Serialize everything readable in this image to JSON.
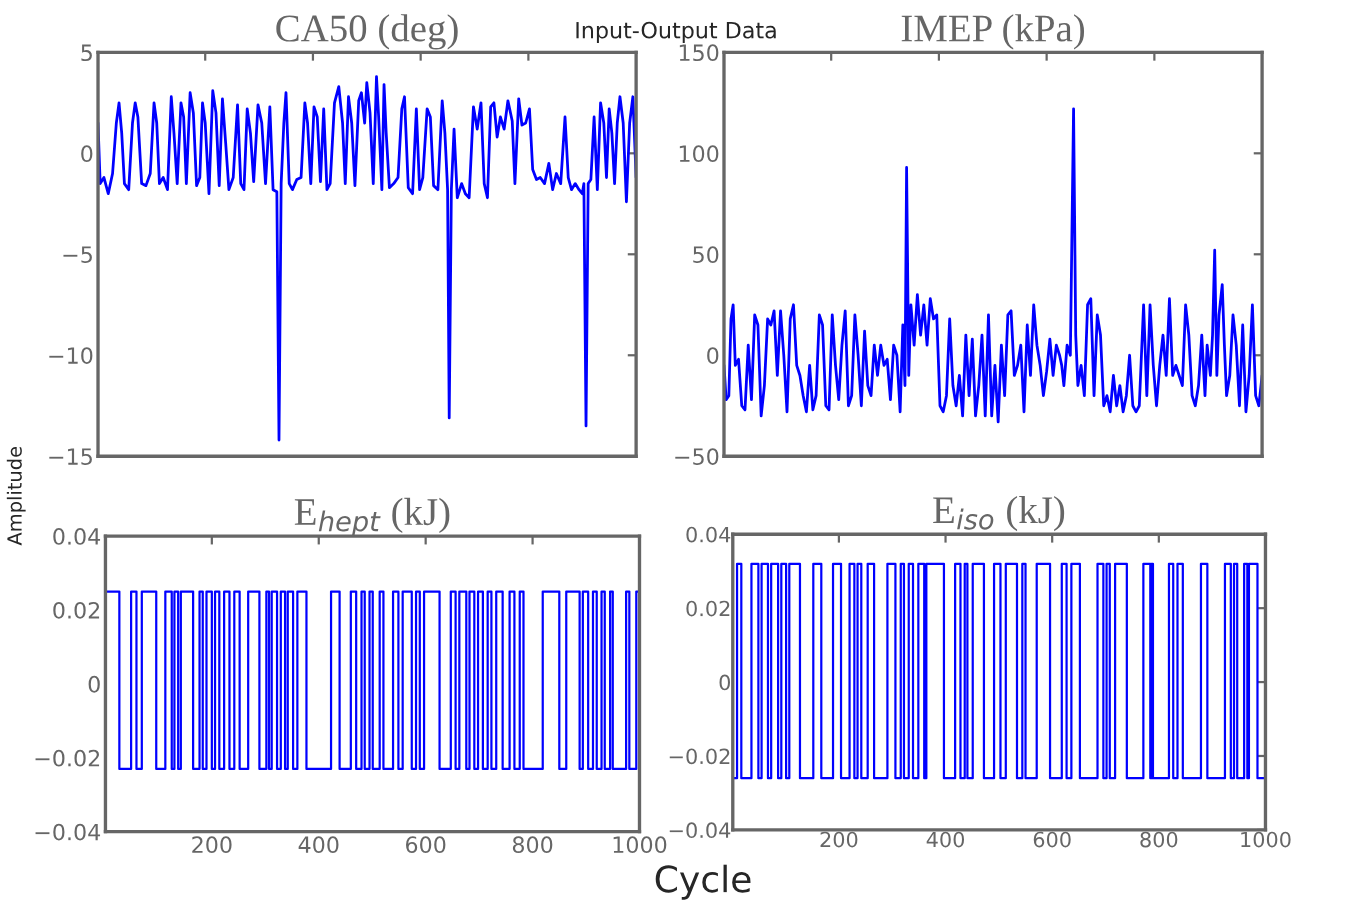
{
  "chart_data": [
    {
      "type": "line",
      "title": "CA50 (deg)",
      "ylabel": "Amplitude",
      "annotations": [
        "Input-Output Data"
      ],
      "xlim": [
        1,
        1000
      ],
      "xticks": [
        {
          "value": 200,
          "label": null
        },
        {
          "value": 400,
          "label": null
        },
        {
          "value": 600,
          "label": null
        },
        {
          "value": 800,
          "label": null
        }
      ],
      "ylim": [
        -15,
        5
      ],
      "yticks": [
        -15,
        -10,
        -5,
        0,
        5
      ],
      "tick_labels": "y",
      "grid": false,
      "series": [
        {
          "color": "#0000ff",
          "x": [
            1,
            5,
            12,
            20,
            28,
            35,
            40,
            45,
            50,
            58,
            65,
            70,
            75,
            82,
            90,
            98,
            105,
            110,
            115,
            122,
            130,
            137,
            142,
            148,
            155,
            160,
            165,
            172,
            178,
            184,
            190,
            195,
            200,
            207,
            214,
            220,
            226,
            232,
            238,
            244,
            252,
            260,
            266,
            272,
            278,
            284,
            290,
            298,
            305,
            312,
            320,
            326,
            333,
            337,
            341,
            346,
            350,
            356,
            362,
            370,
            378,
            385,
            390,
            396,
            402,
            408,
            414,
            420,
            426,
            432,
            440,
            448,
            455,
            460,
            466,
            472,
            478,
            485,
            490,
            496,
            500,
            506,
            512,
            518,
            522,
            528,
            532,
            536,
            542,
            550,
            558,
            565,
            570,
            577,
            585,
            592,
            598,
            604,
            612,
            618,
            624,
            632,
            640,
            645,
            650,
            653,
            657,
            662,
            668,
            676,
            683,
            690,
            698,
            705,
            712,
            718,
            724,
            730,
            736,
            742,
            748,
            755,
            762,
            770,
            775,
            782,
            788,
            795,
            802,
            808,
            815,
            822,
            830,
            838,
            845,
            852,
            860,
            868,
            874,
            880,
            887,
            894,
            900,
            903,
            907,
            911,
            916,
            922,
            928,
            934,
            940,
            945,
            950,
            955,
            960,
            965,
            970,
            976,
            982,
            988,
            994,
            1000
          ],
          "values": [
            1.5,
            -1.5,
            -1.2,
            -2,
            -1,
            1.5,
            2.5,
            1,
            -1.5,
            -1.8,
            1.5,
            2.5,
            1.8,
            -1.5,
            -1.6,
            -1,
            2.5,
            1.5,
            -1.5,
            -1.2,
            -1.8,
            2.8,
            1,
            -1.5,
            2.5,
            1.8,
            -1.5,
            3,
            2,
            -1.6,
            -1.2,
            2.5,
            1.5,
            -2,
            3.1,
            2,
            -1.6,
            2.7,
            0.5,
            -1.8,
            -1.2,
            2.4,
            -1.5,
            -1.8,
            2.2,
            1,
            -1.4,
            2.4,
            1.5,
            -1.5,
            2.3,
            -1.8,
            -1.9,
            -14.2,
            -1.5,
            1.5,
            3,
            -1.5,
            -1.8,
            -1.3,
            -1.2,
            2.5,
            1.5,
            -1.5,
            2.3,
            1.8,
            -1.4,
            2.2,
            -1.8,
            -1.5,
            2.5,
            3.3,
            1.5,
            -1.5,
            2.8,
            1.5,
            -1.6,
            2.6,
            3,
            1.5,
            3.5,
            2,
            -1.5,
            3.8,
            1.8,
            -1.8,
            3.4,
            1,
            -1.7,
            -1.5,
            -1.2,
            2.2,
            2.8,
            -1.7,
            -2,
            2.2,
            -1.8,
            -1.2,
            2.2,
            1.8,
            -1.6,
            -1.8,
            2.6,
            1,
            -1.8,
            -13.1,
            -1.8,
            1.2,
            -2.2,
            -1.5,
            -2,
            -2.2,
            2.3,
            1.2,
            2.5,
            -1.5,
            -2.2,
            2.3,
            2.5,
            0.8,
            1.8,
            1.2,
            2.6,
            1.6,
            -1.5,
            2.7,
            1.4,
            1.5,
            2.2,
            -0.8,
            -1.3,
            -1.2,
            -1.5,
            -0.5,
            -1.8,
            -1,
            -1.5,
            1.8,
            -1.2,
            -1.8,
            -1.5,
            -1.8,
            -2,
            -1.5,
            -13.5,
            -1.5,
            -1.3,
            1.8,
            -1.8,
            2.5,
            1.5,
            -1.2,
            2.2,
            1,
            -1.5,
            1.5,
            2.8,
            1.5,
            -2.4,
            1.5,
            2.8,
            -1.2
          ]
        }
      ]
    },
    {
      "type": "line",
      "title": "IMEP (kPa)",
      "xlim": [
        1,
        1000
      ],
      "xticks": [
        {
          "value": 200,
          "label": null
        },
        {
          "value": 400,
          "label": null
        },
        {
          "value": 600,
          "label": null
        },
        {
          "value": 800,
          "label": null
        }
      ],
      "ylim": [
        -50,
        150
      ],
      "yticks": [
        -50,
        0,
        50,
        100,
        150
      ],
      "tick_labels": "y",
      "grid": false,
      "series": [
        {
          "color": "#0000ff",
          "x": [
            1,
            5,
            10,
            14,
            18,
            22,
            28,
            34,
            40,
            46,
            52,
            58,
            64,
            70,
            76,
            82,
            88,
            94,
            100,
            106,
            112,
            118,
            124,
            130,
            136,
            142,
            148,
            154,
            160,
            166,
            172,
            178,
            184,
            190,
            196,
            202,
            208,
            214,
            220,
            226,
            232,
            238,
            244,
            250,
            256,
            262,
            268,
            274,
            280,
            286,
            292,
            298,
            304,
            310,
            316,
            322,
            328,
            333,
            337,
            340,
            344,
            348,
            354,
            360,
            366,
            372,
            378,
            384,
            390,
            396,
            402,
            408,
            414,
            420,
            426,
            432,
            438,
            444,
            450,
            456,
            462,
            468,
            474,
            480,
            486,
            492,
            498,
            504,
            510,
            516,
            522,
            528,
            534,
            540,
            546,
            552,
            558,
            564,
            570,
            576,
            582,
            588,
            594,
            600,
            606,
            612,
            618,
            624,
            628,
            632,
            638,
            644,
            650,
            654,
            658,
            664,
            670,
            676,
            682,
            688,
            694,
            700,
            706,
            712,
            718,
            724,
            730,
            736,
            742,
            748,
            754,
            760,
            766,
            772,
            780,
            786,
            792,
            798,
            804,
            810,
            816,
            822,
            828,
            834,
            840,
            846,
            852,
            858,
            864,
            870,
            876,
            882,
            888,
            894,
            898,
            904,
            908,
            912,
            916,
            920,
            926,
            930,
            934,
            940,
            946,
            952,
            958,
            964,
            970,
            976,
            982,
            988,
            994,
            1000
          ],
          "values": [
            -5,
            -22,
            -20,
            18,
            25,
            -5,
            -2,
            -25,
            -27,
            5,
            -22,
            20,
            15,
            -30,
            -15,
            18,
            15,
            22,
            -10,
            22,
            0,
            -28,
            18,
            25,
            -5,
            -10,
            -20,
            -28,
            -5,
            -27,
            -20,
            20,
            15,
            -25,
            -27,
            20,
            -5,
            -22,
            5,
            22,
            -25,
            -20,
            20,
            0,
            -25,
            12,
            -15,
            -20,
            5,
            -10,
            5,
            -5,
            -2,
            -22,
            5,
            0,
            -28,
            15,
            -15,
            93,
            -10,
            25,
            5,
            30,
            10,
            25,
            5,
            28,
            18,
            20,
            -25,
            -28,
            -20,
            18,
            -15,
            -25,
            -10,
            -30,
            10,
            -20,
            8,
            -30,
            -15,
            10,
            -30,
            20,
            -30,
            -5,
            -33,
            5,
            -20,
            20,
            22,
            -10,
            -5,
            5,
            -28,
            15,
            -10,
            25,
            5,
            -5,
            -20,
            -8,
            8,
            -10,
            5,
            0,
            -5,
            -15,
            5,
            0,
            122,
            10,
            -15,
            -5,
            -20,
            25,
            28,
            -20,
            20,
            10,
            -25,
            -20,
            -28,
            -10,
            -25,
            -15,
            -28,
            -20,
            0,
            -25,
            -28,
            -25,
            25,
            -20,
            25,
            -5,
            -25,
            -5,
            10,
            -10,
            28,
            -10,
            -5,
            -10,
            -15,
            25,
            10,
            -20,
            -25,
            -15,
            10,
            -20,
            5,
            -10,
            10,
            52,
            -10,
            20,
            35,
            5,
            -20,
            -10,
            20,
            5,
            -25,
            15,
            -28,
            -10,
            25,
            -20,
            -25,
            -10
          ]
        }
      ]
    },
    {
      "type": "step",
      "title": "E$_{hept}$ (kJ)",
      "xlim": [
        1,
        1000
      ],
      "xticks": [
        200,
        400,
        600,
        800,
        1000
      ],
      "ylim": [
        -0.04,
        0.04
      ],
      "yticks": [
        -0.04,
        -0.02,
        0,
        0.02,
        0.04
      ],
      "grid": false,
      "series": [
        {
          "color": "#0000ff",
          "x": [
            1,
            27,
            49,
            59,
            69,
            96,
            113,
            125,
            130,
            137,
            142,
            165,
            177,
            183,
            190,
            200,
            206,
            214,
            223,
            233,
            242,
            252,
            268,
            289,
            302,
            307,
            312,
            322,
            329,
            337,
            342,
            352,
            360,
            377,
            423,
            439,
            460,
            470,
            480,
            486,
            495,
            501,
            514,
            521,
            539,
            549,
            557,
            574,
            582,
            589,
            597,
            626,
            647,
            656,
            663,
            676,
            682,
            691,
            698,
            707,
            716,
            723,
            732,
            744,
            757,
            766,
            776,
            783,
            819,
            850,
            863,
            888,
            894,
            904,
            913,
            920,
            929,
            935,
            945,
            950,
            975,
            981,
            994,
            1000
          ],
          "values": [
            0.025,
            -0.023,
            0.025,
            -0.023,
            0.025,
            -0.023,
            0.025,
            -0.023,
            0.025,
            -0.023,
            0.025,
            -0.023,
            0.025,
            -0.023,
            0.025,
            -0.023,
            0.025,
            -0.023,
            0.025,
            -0.023,
            0.025,
            -0.023,
            0.025,
            -0.023,
            0.025,
            -0.023,
            0.025,
            -0.023,
            0.025,
            -0.023,
            0.025,
            -0.023,
            0.025,
            -0.023,
            0.025,
            -0.023,
            0.025,
            -0.023,
            0.025,
            -0.023,
            0.025,
            -0.023,
            0.025,
            -0.023,
            0.025,
            -0.023,
            0.025,
            -0.023,
            0.025,
            -0.023,
            0.025,
            -0.023,
            0.025,
            -0.023,
            0.025,
            -0.023,
            0.025,
            -0.023,
            0.025,
            -0.023,
            0.025,
            -0.023,
            0.025,
            -0.023,
            0.025,
            -0.023,
            0.025,
            -0.023,
            0.025,
            -0.023,
            0.025,
            -0.023,
            0.025,
            -0.023,
            0.025,
            -0.023,
            0.025,
            -0.023,
            0.025,
            -0.023,
            0.025,
            -0.023,
            0.025,
            0.025
          ]
        }
      ]
    },
    {
      "type": "step",
      "title": "E$_{iso}$ (kJ)",
      "xlabel": "Cycle",
      "xlim": [
        1,
        1000
      ],
      "xticks": [
        200,
        400,
        600,
        800,
        1000
      ],
      "ylim": [
        -0.04,
        0.04
      ],
      "yticks": [
        -0.04,
        -0.02,
        0,
        0.02,
        0.04
      ],
      "grid": false,
      "series": [
        {
          "color": "#0000ff",
          "x": [
            1,
            9,
            17,
            36,
            49,
            55,
            67,
            73,
            86,
            92,
            101,
            107,
            127,
            152,
            167,
            189,
            204,
            220,
            229,
            235,
            242,
            254,
            266,
            291,
            306,
            316,
            322,
            331,
            339,
            349,
            360,
            364,
            397,
            418,
            428,
            436,
            441,
            451,
            472,
            491,
            503,
            513,
            534,
            544,
            550,
            571,
            596,
            618,
            627,
            636,
            652,
            685,
            696,
            702,
            708,
            718,
            740,
            771,
            784,
            786,
            789,
            819,
            827,
            835,
            845,
            879,
            891,
            924,
            935,
            941,
            947,
            960,
            966,
            969,
            985,
            1000
          ],
          "values": [
            -0.026,
            0.032,
            -0.026,
            0.032,
            -0.026,
            0.032,
            -0.026,
            0.032,
            -0.026,
            0.032,
            -0.026,
            0.032,
            -0.026,
            0.032,
            -0.026,
            0.032,
            -0.026,
            0.032,
            -0.026,
            0.032,
            -0.026,
            0.032,
            -0.026,
            0.032,
            -0.026,
            0.032,
            -0.026,
            0.032,
            -0.026,
            0.032,
            -0.026,
            0.032,
            -0.026,
            0.032,
            -0.026,
            0.032,
            -0.026,
            0.032,
            -0.026,
            0.032,
            -0.026,
            0.032,
            -0.026,
            0.032,
            -0.026,
            0.032,
            -0.026,
            0.032,
            -0.026,
            0.032,
            -0.026,
            0.032,
            -0.026,
            0.032,
            -0.026,
            0.032,
            -0.026,
            0.032,
            -0.026,
            0.032,
            -0.026,
            0.032,
            -0.026,
            0.032,
            -0.026,
            0.032,
            -0.026,
            0.032,
            -0.026,
            0.032,
            -0.026,
            0.032,
            -0.026,
            0.032,
            -0.026,
            -0.026
          ]
        }
      ]
    }
  ]
}
